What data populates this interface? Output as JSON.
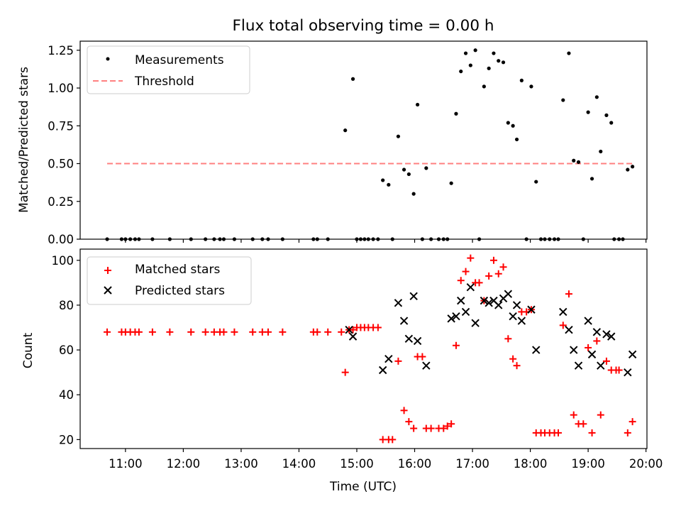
{
  "chart_data": [
    {
      "type": "scatter",
      "title": "Flux total observing time = 0.00 h",
      "ylabel": "Matched/Predicted stars",
      "xlabel": "",
      "ylim": [
        0,
        1.31
      ],
      "yticks": [
        "0.00",
        "0.25",
        "0.50",
        "0.75",
        "1.00",
        "1.25"
      ],
      "ytick_values": [
        0,
        0.25,
        0.5,
        0.75,
        1.0,
        1.25
      ],
      "legend": "top-left",
      "series": [
        {
          "name": "Measurements",
          "marker": "dot",
          "color": "#000000",
          "points": [
            [
              "10:41",
              0
            ],
            [
              "10:56",
              0
            ],
            [
              "11:00",
              0
            ],
            [
              "11:05",
              0
            ],
            [
              "11:10",
              0
            ],
            [
              "11:14",
              0
            ],
            [
              "11:28",
              0
            ],
            [
              "11:46",
              0
            ],
            [
              "12:08",
              0
            ],
            [
              "12:23",
              0
            ],
            [
              "12:32",
              0
            ],
            [
              "12:38",
              0
            ],
            [
              "12:42",
              0
            ],
            [
              "12:53",
              0
            ],
            [
              "13:12",
              0
            ],
            [
              "13:22",
              0
            ],
            [
              "13:28",
              0
            ],
            [
              "13:43",
              0
            ],
            [
              "14:15",
              0
            ],
            [
              "14:19",
              0
            ],
            [
              "14:30",
              0
            ],
            [
              "14:48",
              0.72
            ],
            [
              "14:56",
              1.06
            ],
            [
              "15:00",
              0
            ],
            [
              "15:04",
              0
            ],
            [
              "15:08",
              0
            ],
            [
              "15:12",
              0
            ],
            [
              "15:17",
              0
            ],
            [
              "15:22",
              0
            ],
            [
              "15:27",
              0.39
            ],
            [
              "15:33",
              0.36
            ],
            [
              "15:37",
              0
            ],
            [
              "15:43",
              0.68
            ],
            [
              "15:49",
              0.46
            ],
            [
              "15:54",
              0.43
            ],
            [
              "15:59",
              0.3
            ],
            [
              "16:03",
              0.89
            ],
            [
              "16:08",
              0
            ],
            [
              "16:12",
              0.47
            ],
            [
              "16:17",
              0
            ],
            [
              "16:25",
              0
            ],
            [
              "16:30",
              0
            ],
            [
              "16:34",
              0
            ],
            [
              "16:38",
              0.37
            ],
            [
              "16:43",
              0.83
            ],
            [
              "16:48",
              1.11
            ],
            [
              "16:53",
              1.23
            ],
            [
              "16:58",
              1.15
            ],
            [
              "17:03",
              1.25
            ],
            [
              "17:07",
              0
            ],
            [
              "17:12",
              1.01
            ],
            [
              "17:17",
              1.13
            ],
            [
              "17:22",
              1.23
            ],
            [
              "17:27",
              1.18
            ],
            [
              "17:32",
              1.17
            ],
            [
              "17:37",
              0.77
            ],
            [
              "17:42",
              0.75
            ],
            [
              "17:46",
              0.66
            ],
            [
              "17:51",
              1.05
            ],
            [
              "17:56",
              0
            ],
            [
              "18:01",
              1.01
            ],
            [
              "18:06",
              0.38
            ],
            [
              "18:11",
              0
            ],
            [
              "18:15",
              0
            ],
            [
              "18:20",
              0
            ],
            [
              "18:25",
              0
            ],
            [
              "18:29",
              0
            ],
            [
              "18:34",
              0.92
            ],
            [
              "18:40",
              1.23
            ],
            [
              "18:45",
              0.52
            ],
            [
              "18:50",
              0.51
            ],
            [
              "18:55",
              0
            ],
            [
              "19:00",
              0.84
            ],
            [
              "19:04",
              0.4
            ],
            [
              "19:09",
              0.94
            ],
            [
              "19:13",
              0.58
            ],
            [
              "19:19",
              0.82
            ],
            [
              "19:24",
              0.77
            ],
            [
              "19:27",
              0
            ],
            [
              "19:32",
              0
            ],
            [
              "19:36",
              0
            ],
            [
              "19:41",
              0.46
            ],
            [
              "19:46",
              0.48
            ]
          ]
        },
        {
          "name": "Threshold",
          "marker": "dashed-line",
          "color": "#ff8080",
          "points": [
            [
              "10:41",
              0.5
            ],
            [
              "19:46",
              0.5
            ]
          ]
        }
      ]
    },
    {
      "type": "scatter",
      "title": "",
      "ylabel": "Count",
      "xlabel": "Time (UTC)",
      "ylim": [
        16,
        105
      ],
      "yticks": [
        "20",
        "40",
        "60",
        "80",
        "100"
      ],
      "ytick_values": [
        20,
        40,
        60,
        80,
        100
      ],
      "xlim": [
        "10:13",
        "20:01"
      ],
      "xticks": [
        "11:00",
        "12:00",
        "13:00",
        "14:00",
        "15:00",
        "16:00",
        "17:00",
        "18:00",
        "19:00",
        "20:00"
      ],
      "legend": "top-left",
      "series": [
        {
          "name": "Matched stars",
          "marker": "plus",
          "color": "#ff0000",
          "points": [
            [
              "10:41",
              68
            ],
            [
              "10:56",
              68
            ],
            [
              "11:00",
              68
            ],
            [
              "11:05",
              68
            ],
            [
              "11:10",
              68
            ],
            [
              "11:14",
              68
            ],
            [
              "11:28",
              68
            ],
            [
              "11:46",
              68
            ],
            [
              "12:08",
              68
            ],
            [
              "12:23",
              68
            ],
            [
              "12:32",
              68
            ],
            [
              "12:38",
              68
            ],
            [
              "12:42",
              68
            ],
            [
              "12:53",
              68
            ],
            [
              "13:12",
              68
            ],
            [
              "13:22",
              68
            ],
            [
              "13:28",
              68
            ],
            [
              "13:43",
              68
            ],
            [
              "14:15",
              68
            ],
            [
              "14:19",
              68
            ],
            [
              "14:30",
              68
            ],
            [
              "14:44",
              68
            ],
            [
              "14:48",
              50
            ],
            [
              "14:52",
              69
            ],
            [
              "14:56",
              69
            ],
            [
              "15:00",
              70
            ],
            [
              "15:04",
              70
            ],
            [
              "15:08",
              70
            ],
            [
              "15:12",
              70
            ],
            [
              "15:17",
              70
            ],
            [
              "15:22",
              70
            ],
            [
              "15:27",
              20
            ],
            [
              "15:33",
              20
            ],
            [
              "15:37",
              20
            ],
            [
              "15:43",
              55
            ],
            [
              "15:49",
              33
            ],
            [
              "15:54",
              28
            ],
            [
              "15:59",
              25
            ],
            [
              "16:03",
              57
            ],
            [
              "16:08",
              57
            ],
            [
              "16:12",
              25
            ],
            [
              "16:17",
              25
            ],
            [
              "16:25",
              25
            ],
            [
              "16:30",
              25
            ],
            [
              "16:34",
              26
            ],
            [
              "16:38",
              27
            ],
            [
              "16:43",
              62
            ],
            [
              "16:48",
              91
            ],
            [
              "16:53",
              95
            ],
            [
              "16:58",
              101
            ],
            [
              "17:03",
              90
            ],
            [
              "17:07",
              90
            ],
            [
              "17:12",
              82
            ],
            [
              "17:17",
              93
            ],
            [
              "17:22",
              100
            ],
            [
              "17:27",
              94
            ],
            [
              "17:32",
              97
            ],
            [
              "17:37",
              65
            ],
            [
              "17:42",
              56
            ],
            [
              "17:46",
              53
            ],
            [
              "17:51",
              77
            ],
            [
              "17:56",
              77
            ],
            [
              "18:01",
              78
            ],
            [
              "18:06",
              23
            ],
            [
              "18:11",
              23
            ],
            [
              "18:15",
              23
            ],
            [
              "18:20",
              23
            ],
            [
              "18:25",
              23
            ],
            [
              "18:29",
              23
            ],
            [
              "18:34",
              71
            ],
            [
              "18:40",
              85
            ],
            [
              "18:45",
              31
            ],
            [
              "18:50",
              27
            ],
            [
              "18:55",
              27
            ],
            [
              "19:00",
              61
            ],
            [
              "19:04",
              23
            ],
            [
              "19:09",
              64
            ],
            [
              "19:13",
              31
            ],
            [
              "19:19",
              55
            ],
            [
              "19:24",
              51
            ],
            [
              "19:29",
              51
            ],
            [
              "19:32",
              51
            ],
            [
              "19:41",
              23
            ],
            [
              "19:46",
              28
            ]
          ]
        },
        {
          "name": "Predicted stars",
          "marker": "x",
          "color": "#000000",
          "points": [
            [
              "14:52",
              69
            ],
            [
              "14:56",
              66
            ],
            [
              "15:27",
              51
            ],
            [
              "15:33",
              56
            ],
            [
              "15:43",
              81
            ],
            [
              "15:49",
              73
            ],
            [
              "15:54",
              65
            ],
            [
              "15:59",
              84
            ],
            [
              "16:03",
              64
            ],
            [
              "16:12",
              53
            ],
            [
              "16:38",
              74
            ],
            [
              "16:43",
              75
            ],
            [
              "16:48",
              82
            ],
            [
              "16:53",
              77
            ],
            [
              "16:58",
              88
            ],
            [
              "17:03",
              72
            ],
            [
              "17:12",
              82
            ],
            [
              "17:17",
              81
            ],
            [
              "17:22",
              82
            ],
            [
              "17:27",
              80
            ],
            [
              "17:32",
              83
            ],
            [
              "17:37",
              85
            ],
            [
              "17:42",
              75
            ],
            [
              "17:46",
              80
            ],
            [
              "17:51",
              73
            ],
            [
              "18:01",
              78
            ],
            [
              "18:06",
              60
            ],
            [
              "18:34",
              77
            ],
            [
              "18:40",
              69
            ],
            [
              "18:45",
              60
            ],
            [
              "18:50",
              53
            ],
            [
              "19:00",
              73
            ],
            [
              "19:04",
              58
            ],
            [
              "19:09",
              68
            ],
            [
              "19:13",
              53
            ],
            [
              "19:19",
              67
            ],
            [
              "19:24",
              66
            ],
            [
              "19:41",
              50
            ],
            [
              "19:46",
              58
            ]
          ]
        }
      ]
    }
  ]
}
